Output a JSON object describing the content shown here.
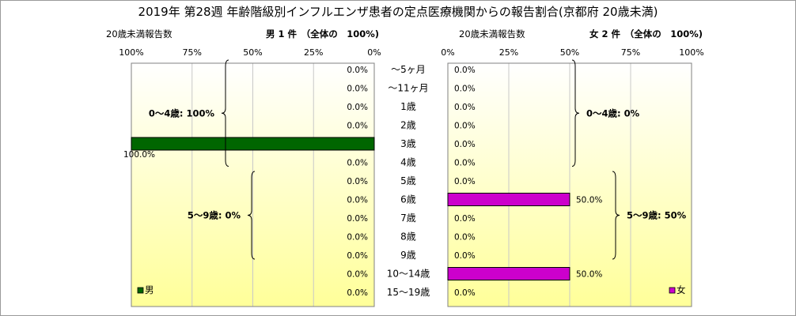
{
  "title": "2019年 第28週 年齢階級別インフルエンザ患者の定点医療機関からの報告割合(京都府 20歳未満)",
  "chart_data": {
    "type": "bar",
    "title": "2019年 第28週 年齢階級別インフルエンザ患者の定点医療機関からの報告割合(京都府 20歳未満)",
    "categories": [
      "～5ヶ月",
      "～11ヶ月",
      "1歳",
      "2歳",
      "3歳",
      "4歳",
      "5歳",
      "6歳",
      "7歳",
      "8歳",
      "9歳",
      "10～14歳",
      "15～19歳"
    ],
    "left": {
      "header_left": "20歳未満報告数",
      "header": "男 1 件　（全体の　100%)",
      "ticks": [
        "100%",
        "75%",
        "50%",
        "25%",
        "0%"
      ],
      "xlim": [
        0,
        100
      ],
      "series": [
        {
          "name": "男",
          "color": "#006600",
          "values": [
            0,
            0,
            0,
            0,
            100,
            0,
            0,
            0,
            0,
            0,
            0,
            0,
            0
          ],
          "labels": [
            "0.0%",
            "0.0%",
            "0.0%",
            "0.0%",
            "100.0%",
            "0.0%",
            "0.0%",
            "0.0%",
            "0.0%",
            "0.0%",
            "0.0%",
            "0.0%",
            "0.0%"
          ]
        }
      ],
      "groups": [
        {
          "label": "0～4歳: 100%",
          "from": 0,
          "to": 5
        },
        {
          "label": "5～9歳: 0%",
          "from": 6,
          "to": 10
        }
      ]
    },
    "right": {
      "header_left": "20歳未満報告数",
      "header": "女 2 件　（全体の　100%)",
      "ticks": [
        "0%",
        "25%",
        "50%",
        "75%",
        "100%"
      ],
      "xlim": [
        0,
        100
      ],
      "series": [
        {
          "name": "女",
          "color": "#cc00cc",
          "values": [
            0,
            0,
            0,
            0,
            0,
            0,
            0,
            50,
            0,
            0,
            0,
            50,
            0
          ],
          "labels": [
            "0.0%",
            "0.0%",
            "0.0%",
            "0.0%",
            "0.0%",
            "0.0%",
            "0.0%",
            "50.0%",
            "0.0%",
            "0.0%",
            "0.0%",
            "50.0%",
            "0.0%"
          ]
        }
      ],
      "groups": [
        {
          "label": "0～4歳: 0%",
          "from": 0,
          "to": 5
        },
        {
          "label": "5～9歳: 50%",
          "from": 6,
          "to": 10
        }
      ]
    },
    "grid": true
  }
}
